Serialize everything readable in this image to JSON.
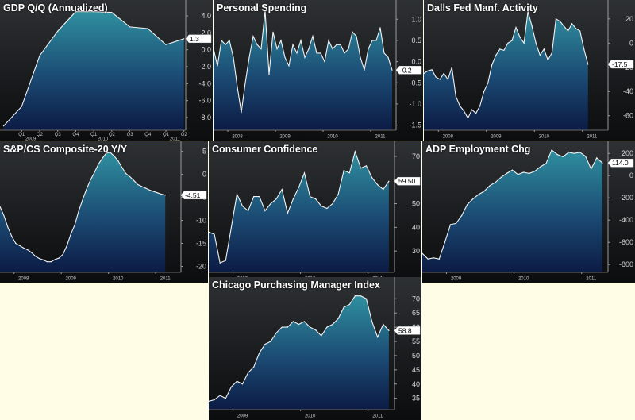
{
  "chart_data": [
    {
      "type": "area",
      "title": "GDP Q/Q (Annualized)",
      "ylim": [
        -9.5,
        5.5
      ],
      "yticks": [
        4.0,
        2.0,
        0.0,
        -2.0,
        -4.0,
        -6.0,
        -8.0
      ],
      "ytick_labels": [
        "4.0",
        "2.0",
        "0.0",
        "-2.0",
        "-4.0",
        "-6.0",
        "-8.0"
      ],
      "xticks": [
        {
          "label": "Q1",
          "x": 1
        },
        {
          "label": "Q2",
          "x": 2
        },
        {
          "label": "Q3",
          "x": 3
        },
        {
          "label": "Q4",
          "x": 4
        },
        {
          "label": "Q1",
          "x": 5
        },
        {
          "label": "Q2",
          "x": 6
        },
        {
          "label": "Q3",
          "x": 7
        },
        {
          "label": "Q4",
          "x": 8
        },
        {
          "label": "Q1",
          "x": 9
        },
        {
          "label": "Q2",
          "x": 10
        }
      ],
      "years": [
        {
          "label": "2009",
          "x": 1.5
        },
        {
          "label": "2010",
          "x": 5.5
        },
        {
          "label": "2011",
          "x": 9.5
        }
      ],
      "xlim": [
        -0.2,
        10.1
      ],
      "x": [
        0,
        1,
        2,
        3,
        4,
        5,
        6,
        7,
        8,
        9,
        10
      ],
      "values": [
        -9.0,
        -6.7,
        -0.7,
        2.2,
        4.5,
        4.5,
        4.4,
        2.7,
        2.5,
        0.6,
        1.3
      ],
      "last_label": "1.3"
    },
    {
      "type": "area",
      "title": "Personal Spending",
      "ylim": [
        -1.62,
        1.38
      ],
      "yticks": [
        1.0,
        0.5,
        0.0,
        -0.5,
        -1.0,
        -1.5
      ],
      "ytick_labels": [
        "1.0",
        "0.5",
        "0.0",
        "-0.5",
        "-1.0",
        "-1.5"
      ],
      "years": [
        {
          "label": "2008",
          "x": 6
        },
        {
          "label": "2009",
          "x": 18
        },
        {
          "label": "2010",
          "x": 30
        },
        {
          "label": "2011",
          "x": 42
        }
      ],
      "xlim": [
        0,
        46
      ],
      "values": [
        0.3,
        -0.1,
        0.5,
        0.4,
        0.5,
        0.1,
        -0.6,
        -1.2,
        -0.5,
        0.1,
        0.6,
        0.4,
        0.3,
        1.2,
        -0.3,
        0.7,
        0.3,
        0.5,
        0.1,
        -0.1,
        0.4,
        0.2,
        0.5,
        0.1,
        0.3,
        0.6,
        0.2,
        0.2,
        0.0,
        0.5,
        0.3,
        0.4,
        0.4,
        0.2,
        0.3,
        0.7,
        0.6,
        0.1,
        -0.2,
        0.3,
        0.5,
        0.5,
        0.8,
        0.2,
        0.1,
        -0.2
      ],
      "last_label": "-0.2"
    },
    {
      "type": "area",
      "title": "Dalls Fed Manf. Activity",
      "ylim": [
        -72,
        33
      ],
      "yticks": [
        20,
        0,
        -20,
        -40,
        -60
      ],
      "ytick_labels": [
        "20",
        "0",
        "-20",
        "-40",
        "-60"
      ],
      "years": [
        {
          "label": "2008",
          "x": 6
        },
        {
          "label": "2009",
          "x": 18
        },
        {
          "label": "2010",
          "x": 30
        },
        {
          "label": "2011",
          "x": 42
        }
      ],
      "xlim": [
        0,
        46
      ],
      "values": [
        -25,
        -23,
        -22,
        -28,
        -30,
        -25,
        -30,
        -20,
        -44,
        -52,
        -56,
        -62,
        -55,
        -58,
        -52,
        -40,
        -33,
        -18,
        -10,
        -5,
        -6,
        0,
        2,
        13,
        5,
        0,
        26,
        14,
        0,
        -10,
        -5,
        -14,
        -8,
        20,
        18,
        14,
        10,
        16,
        12,
        10,
        -5,
        -17.5
      ],
      "last_label": "-17.5"
    },
    {
      "type": "area",
      "title": "S&P/CS Composite-20 Y/Y",
      "ylim": [
        -21.3,
        6.5
      ],
      "yticks": [
        5,
        0,
        -5,
        -10,
        -15,
        -20
      ],
      "ytick_labels": [
        "5",
        "0",
        "-5",
        "-10",
        "-15",
        "-20"
      ],
      "years": [
        {
          "label": "2008",
          "x": 6
        },
        {
          "label": "2009",
          "x": 18
        },
        {
          "label": "2010",
          "x": 30
        },
        {
          "label": "2011",
          "x": 42
        }
      ],
      "xlim": [
        0,
        46
      ],
      "values": [
        -7.0,
        -9.0,
        -11.5,
        -13.5,
        -15.0,
        -15.5,
        -16.0,
        -16.4,
        -17.0,
        -17.8,
        -18.3,
        -18.6,
        -19.0,
        -19.0,
        -18.5,
        -18.2,
        -17.4,
        -15.5,
        -13.0,
        -11.0,
        -8.0,
        -5.5,
        -3.2,
        -1.2,
        0.4,
        2.2,
        3.5,
        4.6,
        4.8,
        4.0,
        3.0,
        1.5,
        0.2,
        -0.5,
        -1.3,
        -2.2,
        -2.6,
        -3.0,
        -3.4,
        -3.7,
        -4.0,
        -4.3,
        -4.51
      ],
      "last_label": "-4.51"
    },
    {
      "type": "area",
      "title": "Consumer Confidence",
      "ylim": [
        21,
        75
      ],
      "yticks": [
        70,
        60,
        50,
        40,
        30
      ],
      "ytick_labels": [
        "70",
        "60",
        "50",
        "40",
        "30"
      ],
      "years": [
        {
          "label": "2009",
          "x": 6
        },
        {
          "label": "2010",
          "x": 18
        },
        {
          "label": "2011",
          "x": 30
        }
      ],
      "xlim": [
        0,
        33
      ],
      "values": [
        38,
        37,
        25,
        26,
        40,
        54,
        49,
        47,
        53,
        53,
        47,
        50,
        52,
        56,
        46,
        52,
        57,
        63,
        53,
        52,
        49,
        48,
        50,
        54,
        64,
        63,
        72,
        65,
        66,
        61,
        58,
        56,
        59.5
      ],
      "last_label": "59.50"
    },
    {
      "type": "area",
      "title": "ADP Employment Chg",
      "ylim": [
        -870,
        280
      ],
      "yticks": [
        200,
        0,
        -200,
        -400,
        -600,
        -800
      ],
      "ytick_labels": [
        "200",
        "0",
        "-200",
        "-400",
        "-600",
        "-800"
      ],
      "years": [
        {
          "label": "2009",
          "x": 6
        },
        {
          "label": "2010",
          "x": 18
        },
        {
          "label": "2011",
          "x": 30
        }
      ],
      "xlim": [
        0,
        33
      ],
      "values": [
        -700,
        -750,
        -740,
        -750,
        -600,
        -440,
        -430,
        -360,
        -260,
        -210,
        -170,
        -140,
        -90,
        -60,
        -15,
        20,
        50,
        10,
        30,
        20,
        40,
        80,
        110,
        230,
        190,
        170,
        210,
        200,
        210,
        175,
        60,
        160,
        114
      ],
      "last_label": "114.0"
    },
    {
      "type": "area",
      "title": "Chicago Purchasing Manager Index",
      "ylim": [
        31,
        76.5
      ],
      "yticks": [
        70,
        65,
        60,
        55,
        50,
        45,
        40,
        35
      ],
      "ytick_labels": [
        "70",
        "65",
        "60",
        "55",
        "50",
        "45",
        "40",
        "35"
      ],
      "years": [
        {
          "label": "2009",
          "x": 6
        },
        {
          "label": "2010",
          "x": 18
        },
        {
          "label": "2011",
          "x": 30
        }
      ],
      "xlim": [
        0,
        33
      ],
      "values": [
        34,
        34.5,
        36,
        35,
        39,
        41,
        40,
        44,
        46,
        51,
        54,
        55,
        58,
        60,
        60,
        62,
        61,
        62,
        60,
        59,
        57,
        60,
        61,
        63,
        67,
        68,
        71,
        71,
        70,
        62,
        56.5,
        61,
        58.8
      ],
      "last_label": "58.8"
    }
  ]
}
